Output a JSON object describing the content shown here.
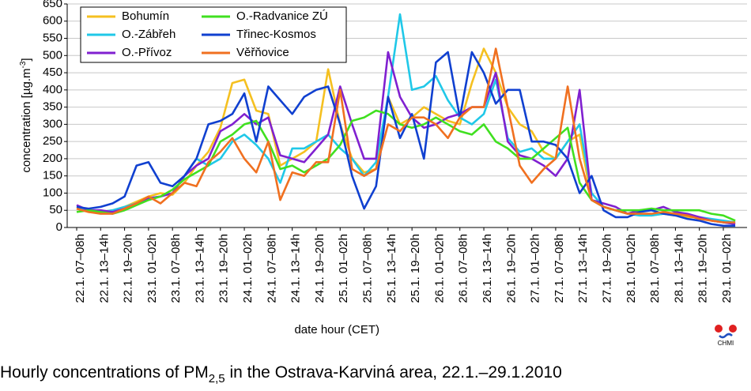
{
  "chart_data": {
    "type": "line",
    "title": [
      "Hourly concentrations of PM",
      "2,5",
      " in the Ostrava-Karviná area, 22.1.–29.1.2010"
    ],
    "y_label": [
      "concentration [µg.m",
      "-3",
      "]"
    ],
    "x_label": "date hour (CET)",
    "logo_text": "CHMI",
    "legend": "upper left",
    "grid": true,
    "ylim": [
      0,
      650
    ],
    "yticks": [
      0,
      50,
      100,
      150,
      200,
      250,
      300,
      350,
      400,
      450,
      500,
      550,
      600,
      650
    ],
    "categories": [
      "22.1. 07–08h",
      null,
      "22.1. 13–14h",
      null,
      "22.1. 19–20h",
      null,
      "23.1. 01–02h",
      null,
      "23.1. 07–08h",
      null,
      "23.1. 13–14h",
      null,
      "23.1. 19–20h",
      null,
      "24.1. 01–02h",
      null,
      "24.1. 07–08h",
      null,
      "24.1. 13–14h",
      null,
      "24.1. 19–20h",
      null,
      "25.1. 01–02h",
      null,
      "25.1. 07–08h",
      null,
      "25.1. 13–14h",
      null,
      "25.1. 19–20h",
      null,
      "26.1. 01–02h",
      null,
      "26.1. 07–08h",
      null,
      "26.1. 13–14h",
      null,
      "26.1. 19–20h",
      null,
      "27.1. 01–02h",
      null,
      "27.1. 07–08h",
      null,
      "27.1. 13–14h",
      null,
      "27.1. 19–20h",
      null,
      "28.1. 01–02h",
      null,
      "28.1. 07–08h",
      null,
      "28.1. 13–14h",
      null,
      "28.1. 19–20h",
      null,
      "29.1. 01–02h",
      null
    ],
    "series": [
      {
        "name": "Bohumín",
        "color": "#f5c020",
        "values": [
          55,
          45,
          45,
          50,
          60,
          75,
          90,
          100,
          95,
          130,
          180,
          220,
          290,
          420,
          430,
          340,
          330,
          180,
          200,
          220,
          250,
          460,
          300,
          200,
          160,
          170,
          380,
          300,
          320,
          350,
          330,
          310,
          300,
          420,
          520,
          450,
          350,
          300,
          280,
          220,
          200,
          250,
          270,
          80,
          60,
          50,
          40,
          40,
          35,
          40,
          35,
          30,
          30,
          20,
          15,
          10
        ]
      },
      {
        "name": "O.-Zábřeh",
        "color": "#20c8e8",
        "values": [
          60,
          50,
          45,
          50,
          60,
          70,
          85,
          90,
          100,
          150,
          200,
          180,
          200,
          250,
          270,
          240,
          200,
          130,
          230,
          230,
          250,
          270,
          230,
          200,
          150,
          190,
          380,
          620,
          400,
          410,
          440,
          370,
          320,
          300,
          330,
          430,
          260,
          220,
          230,
          200,
          200,
          250,
          300,
          100,
          60,
          50,
          40,
          35,
          35,
          40,
          40,
          35,
          30,
          25,
          20,
          15
        ]
      },
      {
        "name": "O.-Přívoz",
        "color": "#8020d0",
        "values": [
          65,
          50,
          50,
          45,
          55,
          70,
          85,
          90,
          100,
          150,
          180,
          200,
          280,
          300,
          330,
          300,
          320,
          210,
          200,
          190,
          230,
          270,
          410,
          300,
          200,
          200,
          510,
          380,
          320,
          290,
          300,
          320,
          330,
          350,
          350,
          450,
          250,
          210,
          200,
          180,
          150,
          200,
          400,
          80,
          70,
          60,
          40,
          50,
          50,
          60,
          45,
          40,
          30,
          20,
          15,
          10
        ]
      },
      {
        "name": "O.-Radvanice ZÚ",
        "color": "#40e020",
        "values": [
          45,
          50,
          45,
          40,
          50,
          65,
          80,
          90,
          110,
          140,
          160,
          180,
          250,
          270,
          300,
          310,
          250,
          170,
          180,
          160,
          180,
          200,
          240,
          310,
          320,
          340,
          330,
          300,
          290,
          300,
          320,
          300,
          280,
          270,
          300,
          250,
          230,
          200,
          200,
          230,
          260,
          290,
          130,
          80,
          60,
          50,
          50,
          50,
          55,
          50,
          50,
          50,
          50,
          40,
          35,
          20
        ]
      },
      {
        "name": "Třinec-Kosmos",
        "color": "#1040d0",
        "values": [
          60,
          55,
          60,
          70,
          90,
          180,
          190,
          130,
          120,
          150,
          200,
          300,
          310,
          330,
          390,
          250,
          410,
          370,
          330,
          380,
          400,
          410,
          300,
          150,
          55,
          120,
          380,
          260,
          330,
          200,
          480,
          510,
          320,
          510,
          450,
          360,
          400,
          400,
          250,
          250,
          240,
          200,
          100,
          150,
          50,
          30,
          30,
          45,
          50,
          40,
          35,
          25,
          20,
          10,
          5,
          5
        ]
      },
      {
        "name": "Věřňovice",
        "color": "#f07020",
        "values": [
          55,
          45,
          40,
          40,
          55,
          70,
          90,
          70,
          100,
          130,
          120,
          190,
          220,
          260,
          200,
          160,
          250,
          80,
          160,
          150,
          190,
          190,
          400,
          170,
          150,
          170,
          300,
          280,
          320,
          320,
          300,
          260,
          320,
          350,
          350,
          520,
          350,
          180,
          130,
          170,
          200,
          410,
          200,
          80,
          60,
          50,
          40,
          40,
          40,
          45,
          40,
          35,
          25,
          20,
          15,
          15
        ]
      }
    ]
  }
}
